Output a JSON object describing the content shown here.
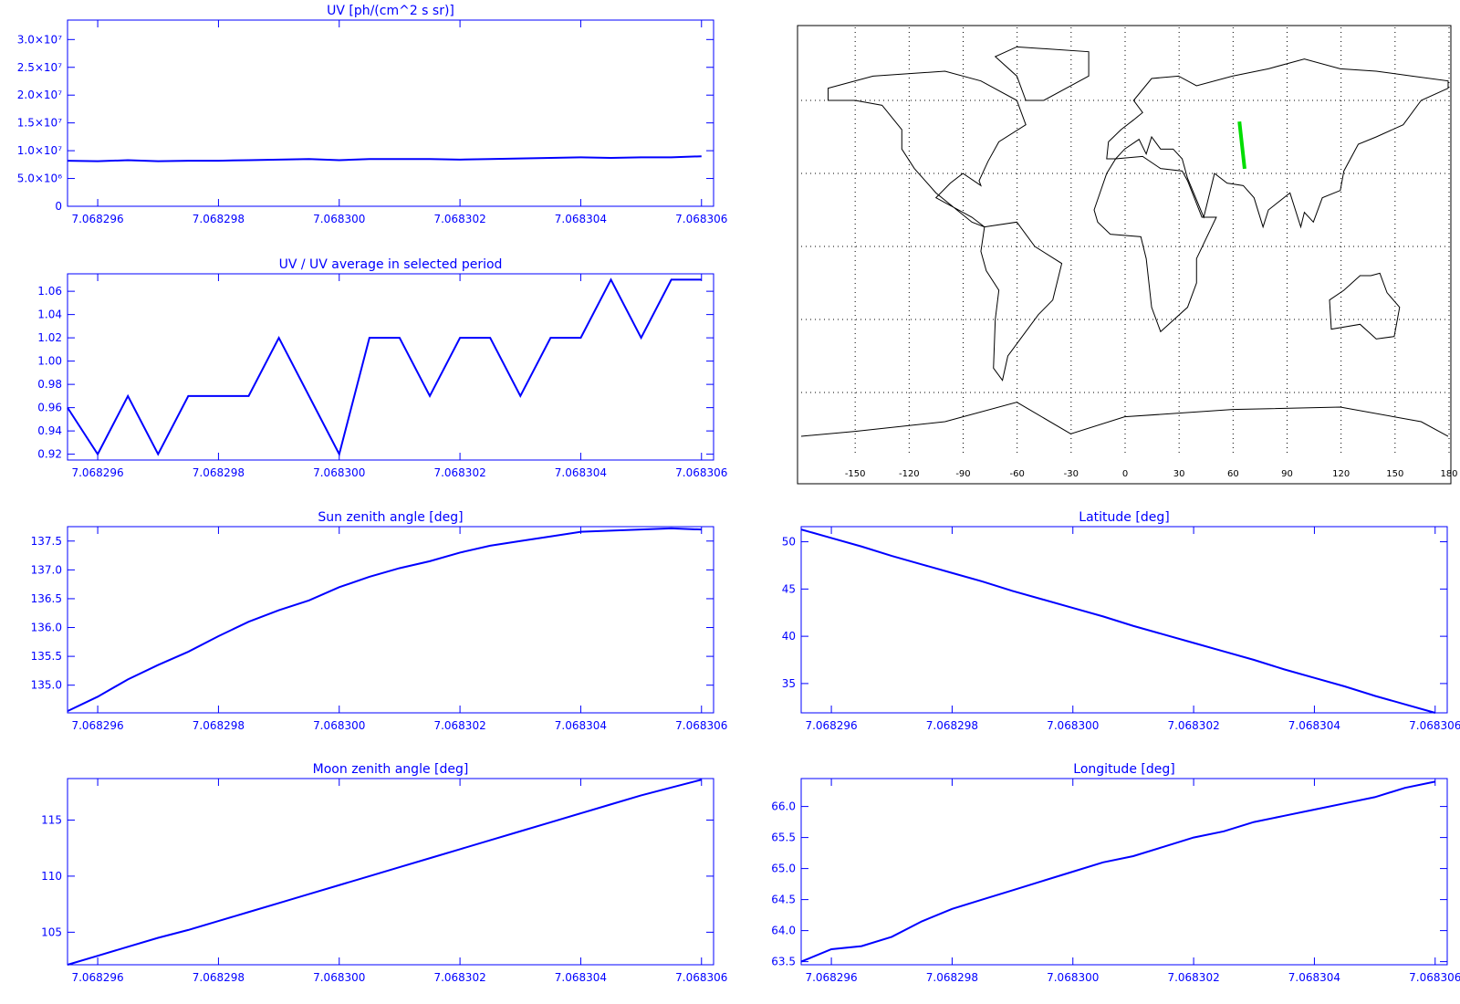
{
  "chart_data": [
    {
      "type": "line",
      "title": "UV [ph/(cm^2 s sr)]",
      "color": "#0000ff",
      "x": [
        7.0682955,
        7.068296,
        7.0682965,
        7.068297,
        7.0682975,
        7.068298,
        7.0682985,
        7.068299,
        7.0682995,
        7.0683,
        7.0683005,
        7.068301,
        7.0683015,
        7.068302,
        7.0683025,
        7.068303,
        7.0683035,
        7.068304,
        7.0683045,
        7.068305,
        7.0683055,
        7.068306
      ],
      "values": [
        8200000,
        8100000,
        8300000,
        8100000,
        8200000,
        8200000,
        8300000,
        8400000,
        8500000,
        8300000,
        8500000,
        8500000,
        8500000,
        8400000,
        8500000,
        8600000,
        8700000,
        8800000,
        8700000,
        8800000,
        8800000,
        9000000
      ],
      "xlim": [
        7.0682955,
        7.0683062
      ],
      "xticks": [
        7.068296,
        7.068298,
        {
          "value": 7.0683,
          "label": "7.068300"
        },
        7.068302,
        7.068304,
        7.068306
      ],
      "ylim": [
        0,
        33500000
      ],
      "yticks": [
        0,
        {
          "value": 5000000,
          "label": "5.0×10⁶"
        },
        {
          "value": 10000000,
          "label": "1.0×10⁷"
        },
        {
          "value": 15000000,
          "label": "1.5×10⁷"
        },
        {
          "value": 20000000,
          "label": "2.0×10⁷"
        },
        {
          "value": 25000000,
          "label": "2.5×10⁷"
        },
        {
          "value": 30000000,
          "label": "3.0×10⁷"
        }
      ]
    },
    {
      "type": "line",
      "title": "UV / UV average in selected period",
      "color": "#0000ff",
      "x": [
        7.0682955,
        7.068296,
        7.0682965,
        7.068297,
        7.0682975,
        7.068298,
        7.0682985,
        7.068299,
        7.0682995,
        7.0683,
        7.0683005,
        7.068301,
        7.0683015,
        7.068302,
        7.0683025,
        7.068303,
        7.0683035,
        7.068304,
        7.0683045,
        7.068305,
        7.0683055,
        7.068306
      ],
      "values": [
        0.96,
        0.92,
        0.97,
        0.92,
        0.97,
        0.97,
        0.97,
        1.02,
        0.97,
        0.92,
        1.02,
        1.02,
        0.97,
        1.02,
        1.02,
        0.97,
        1.02,
        1.02,
        1.07,
        1.02,
        1.07,
        1.07
      ],
      "xlim": [
        7.0682955,
        7.0683062
      ],
      "xticks": [
        7.068296,
        7.068298,
        {
          "value": 7.0683,
          "label": "7.068300"
        },
        7.068302,
        7.068304,
        7.068306
      ],
      "ylim": [
        0.915,
        1.075
      ],
      "yticks": [
        0.92,
        0.94,
        0.96,
        0.98,
        {
          "value": 1,
          "label": "1.00"
        },
        1.02,
        1.04,
        1.06
      ]
    },
    {
      "type": "map",
      "color": "#00dd00",
      "x": [
        63.5,
        66.4
      ],
      "values": [
        51.3,
        31.9
      ],
      "xlim": [
        -180,
        180
      ],
      "ylim": [
        -90,
        90
      ],
      "xticks": [
        -150,
        -120,
        -90,
        -60,
        -30,
        0,
        30,
        60,
        90,
        120,
        150,
        180
      ],
      "ygrid": [
        -60,
        -30,
        0,
        30,
        60
      ]
    },
    {
      "type": "line",
      "title": "Sun zenith angle [deg]",
      "color": "#0000ff",
      "x": [
        7.0682955,
        7.068296,
        7.0682965,
        7.068297,
        7.0682975,
        7.068298,
        7.0682985,
        7.068299,
        7.0682995,
        7.0683,
        7.0683005,
        7.068301,
        7.0683015,
        7.068302,
        7.0683025,
        7.068303,
        7.0683035,
        7.068304,
        7.0683045,
        7.068305,
        7.0683055,
        7.068306
      ],
      "values": [
        134.55,
        134.8,
        135.1,
        135.35,
        135.58,
        135.85,
        136.1,
        136.3,
        136.47,
        136.7,
        136.88,
        137.03,
        137.15,
        137.3,
        137.42,
        137.5,
        137.58,
        137.66,
        137.68,
        137.7,
        137.72,
        137.7
      ],
      "xlim": [
        7.0682955,
        7.0683062
      ],
      "xticks": [
        7.068296,
        7.068298,
        {
          "value": 7.0683,
          "label": "7.068300"
        },
        7.068302,
        7.068304,
        7.068306
      ],
      "ylim": [
        134.52,
        137.75
      ],
      "yticks": [
        {
          "value": 135,
          "label": "135.0"
        },
        135.5,
        {
          "value": 136,
          "label": "136.0"
        },
        136.5,
        {
          "value": 137,
          "label": "137.0"
        },
        137.5
      ]
    },
    {
      "type": "line",
      "title": "Latitude [deg]",
      "color": "#0000ff",
      "x": [
        7.0682955,
        7.068296,
        7.0682965,
        7.068297,
        7.0682975,
        7.068298,
        7.0682985,
        7.068299,
        7.0682995,
        7.0683,
        7.0683005,
        7.068301,
        7.0683015,
        7.068302,
        7.0683025,
        7.068303,
        7.0683035,
        7.068304,
        7.0683045,
        7.068305,
        7.0683055,
        7.068306
      ],
      "values": [
        51.3,
        50.4,
        49.5,
        48.5,
        47.6,
        46.7,
        45.8,
        44.8,
        43.9,
        43.0,
        42.1,
        41.1,
        40.2,
        39.3,
        38.4,
        37.5,
        36.5,
        35.6,
        34.7,
        33.7,
        32.8,
        31.9
      ],
      "xlim": [
        7.0682955,
        7.0683062
      ],
      "xticks": [
        7.068296,
        7.068298,
        {
          "value": 7.0683,
          "label": "7.068300"
        },
        7.068302,
        7.068304,
        7.068306
      ],
      "ylim": [
        31.9,
        51.6
      ],
      "yticks": [
        35,
        40,
        45,
        50
      ]
    },
    {
      "type": "line",
      "title": "Moon zenith angle [deg]",
      "color": "#0000ff",
      "x": [
        7.0682955,
        7.068296,
        7.0682965,
        7.068297,
        7.0682975,
        7.068298,
        7.0682985,
        7.068299,
        7.0682995,
        7.0683,
        7.0683005,
        7.068301,
        7.0683015,
        7.068302,
        7.0683025,
        7.068303,
        7.0683035,
        7.068304,
        7.0683045,
        7.068305,
        7.0683055,
        7.068306
      ],
      "values": [
        102.1,
        102.9,
        103.7,
        104.5,
        105.2,
        106.0,
        106.8,
        107.6,
        108.4,
        109.2,
        110.0,
        110.8,
        111.6,
        112.4,
        113.2,
        114.0,
        114.8,
        115.6,
        116.4,
        117.2,
        117.9,
        118.6
      ],
      "xlim": [
        7.0682955,
        7.0683062
      ],
      "xticks": [
        7.068296,
        7.068298,
        {
          "value": 7.0683,
          "label": "7.068300"
        },
        7.068302,
        7.068304,
        7.068306
      ],
      "ylim": [
        102.1,
        118.7
      ],
      "yticks": [
        105,
        110,
        115
      ]
    },
    {
      "type": "line",
      "title": "Longitude [deg]",
      "color": "#0000ff",
      "x": [
        7.0682955,
        7.068296,
        7.0682965,
        7.068297,
        7.0682975,
        7.068298,
        7.0682985,
        7.068299,
        7.0682995,
        7.0683,
        7.0683005,
        7.068301,
        7.0683015,
        7.068302,
        7.0683025,
        7.068303,
        7.0683035,
        7.068304,
        7.0683045,
        7.068305,
        7.0683055,
        7.068306
      ],
      "values": [
        63.5,
        63.7,
        63.75,
        63.9,
        64.15,
        64.35,
        64.5,
        64.65,
        64.8,
        64.95,
        65.1,
        65.2,
        65.35,
        65.5,
        65.6,
        65.75,
        65.85,
        65.95,
        66.05,
        66.15,
        66.3,
        66.4
      ],
      "xlim": [
        7.0682955,
        7.0683062
      ],
      "xticks": [
        7.068296,
        7.068298,
        {
          "value": 7.0683,
          "label": "7.068300"
        },
        7.068302,
        7.068304,
        7.068306
      ],
      "ylim": [
        63.45,
        66.45
      ],
      "yticks": [
        63.5,
        {
          "value": 64,
          "label": "64.0"
        },
        64.5,
        {
          "value": 65,
          "label": "65.0"
        },
        65.5,
        {
          "value": 66,
          "label": "66.0"
        }
      ]
    }
  ]
}
